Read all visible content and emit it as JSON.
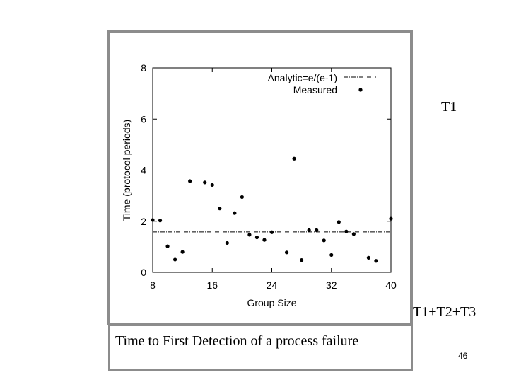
{
  "chart_data": {
    "type": "scatter",
    "title": "",
    "xlabel": "Group Size",
    "ylabel": "Time (protocol periods)",
    "xlim": [
      8,
      40
    ],
    "ylim": [
      0,
      8
    ],
    "xticks": [
      8,
      16,
      24,
      32,
      40
    ],
    "yticks": [
      0,
      2,
      4,
      6,
      8
    ],
    "grid": false,
    "legend_position": "top-right",
    "series": [
      {
        "name": "Analytic=e/(e-1)",
        "kind": "dash-dot line",
        "y": 1.582
      },
      {
        "name": "Measured",
        "kind": "points",
        "x": [
          8,
          9,
          10,
          11,
          12,
          13,
          15,
          16,
          17,
          18,
          19,
          20,
          21,
          22,
          23,
          24,
          26,
          27,
          28,
          29,
          30,
          31,
          32,
          33,
          34,
          35,
          37,
          38,
          40
        ],
        "y": [
          2.05,
          2.03,
          1.02,
          0.5,
          0.8,
          3.57,
          3.52,
          3.42,
          2.5,
          1.15,
          2.32,
          2.95,
          1.47,
          1.37,
          1.27,
          1.57,
          0.78,
          4.45,
          0.48,
          1.65,
          1.65,
          1.25,
          0.68,
          1.97,
          1.6,
          1.5,
          0.57,
          0.45,
          2.1
        ]
      }
    ]
  },
  "caption": "Time to First Detection of a process failure",
  "labels": {
    "t1": "T1",
    "t1t2t3": "T1+T2+T3"
  },
  "page_number": "46"
}
